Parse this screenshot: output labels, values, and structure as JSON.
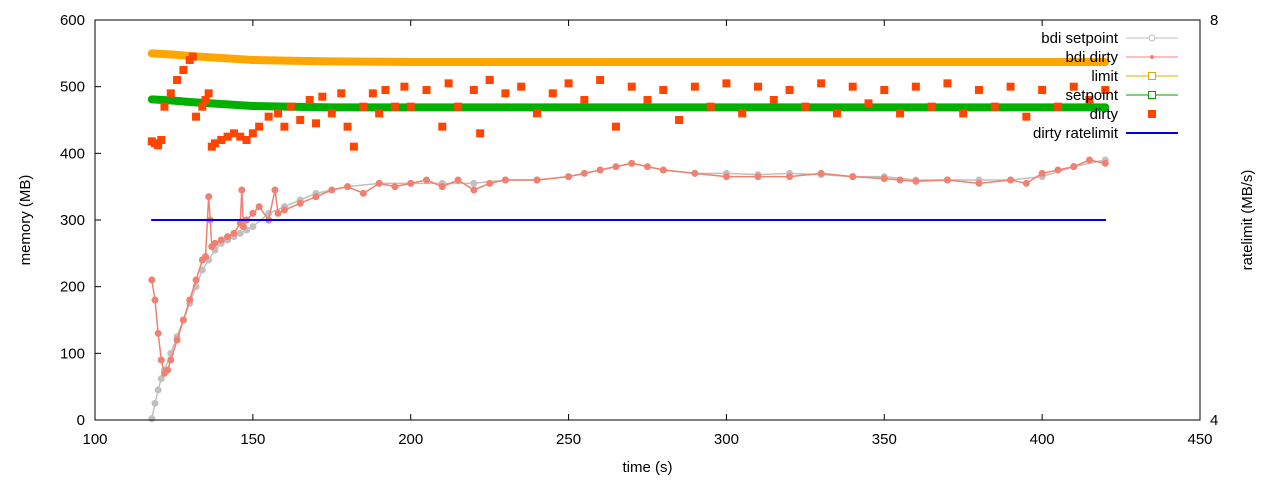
{
  "chart_data": {
    "type": "line",
    "xlabel": "time (s)",
    "ylabel": "memory (MB)",
    "y2label": "ratelimit (MB/s)",
    "xlim": [
      100,
      450
    ],
    "ylim": [
      0,
      600
    ],
    "y2lim": [
      4,
      8
    ],
    "xticks": [
      "100",
      "150",
      "200",
      "250",
      "300",
      "350",
      "400",
      "450"
    ],
    "yticks": [
      "0",
      "100",
      "200",
      "300",
      "400",
      "500",
      "600"
    ],
    "y2ticks": [
      "4",
      "8"
    ],
    "grid": false,
    "legend_position": "top-right",
    "series": [
      {
        "name": "bdi setpoint",
        "color": "#c0c0c0",
        "style": "linespoints",
        "x": [
          118,
          119,
          120,
          121,
          122,
          124,
          126,
          128,
          130,
          132,
          134,
          136,
          138,
          140,
          142,
          144,
          146,
          148,
          150,
          155,
          160,
          165,
          170,
          180,
          190,
          200,
          210,
          220,
          230,
          240,
          250,
          260,
          270,
          280,
          290,
          300,
          310,
          320,
          330,
          340,
          350,
          360,
          370,
          380,
          390,
          400,
          410,
          420
        ],
        "values": [
          2,
          25,
          45,
          62,
          75,
          100,
          125,
          150,
          175,
          200,
          225,
          240,
          255,
          265,
          270,
          275,
          280,
          285,
          290,
          310,
          320,
          330,
          340,
          350,
          355,
          355,
          355,
          355,
          360,
          360,
          365,
          375,
          385,
          375,
          370,
          370,
          368,
          370,
          368,
          365,
          365,
          360,
          360,
          360,
          360,
          365,
          380,
          390
        ]
      },
      {
        "name": "bdi dirty",
        "color": "#f08070",
        "style": "linespoints",
        "x": [
          118,
          119,
          120,
          121,
          122,
          123,
          124,
          126,
          128,
          130,
          132,
          134,
          135,
          136,
          136.5,
          137,
          138,
          140,
          142,
          144,
          146,
          146.5,
          147,
          148,
          150,
          152,
          155,
          157,
          158,
          160,
          165,
          170,
          175,
          180,
          185,
          190,
          195,
          200,
          205,
          210,
          215,
          220,
          225,
          230,
          240,
          250,
          255,
          260,
          265,
          270,
          275,
          280,
          290,
          300,
          310,
          320,
          330,
          340,
          350,
          355,
          360,
          370,
          380,
          390,
          395,
          400,
          405,
          410,
          415,
          420
        ],
        "values": [
          210,
          180,
          130,
          90,
          70,
          75,
          90,
          120,
          150,
          180,
          210,
          240,
          245,
          335,
          300,
          260,
          265,
          270,
          275,
          280,
          295,
          345,
          290,
          300,
          310,
          320,
          300,
          345,
          310,
          315,
          325,
          335,
          345,
          350,
          340,
          355,
          350,
          355,
          360,
          350,
          360,
          345,
          355,
          360,
          360,
          365,
          370,
          375,
          380,
          385,
          380,
          375,
          370,
          365,
          365,
          365,
          370,
          365,
          362,
          360,
          358,
          360,
          355,
          360,
          355,
          370,
          375,
          380,
          390,
          385
        ]
      },
      {
        "name": "limit",
        "color": "#ffa500",
        "style": "linespoints",
        "x": [
          118,
          125,
          130,
          140,
          150,
          160,
          175,
          200,
          250,
          300,
          350,
          400,
          420
        ],
        "values": [
          550,
          548,
          546,
          543,
          540,
          539,
          538,
          537,
          537,
          537,
          537,
          537,
          537
        ]
      },
      {
        "name": "setpoint",
        "color": "#00b000",
        "style": "linespoints",
        "x": [
          118,
          125,
          130,
          140,
          150,
          160,
          175,
          200,
          250,
          300,
          350,
          400,
          420
        ],
        "values": [
          481,
          479,
          477,
          474,
          471,
          470,
          469,
          469,
          469,
          469,
          469,
          469,
          469
        ]
      },
      {
        "name": "dirty",
        "color": "#ff4500",
        "style": "points",
        "x": [
          118,
          119,
          120,
          121,
          122,
          124,
          126,
          128,
          130,
          131,
          132,
          134,
          135,
          136,
          137,
          138,
          140,
          142,
          144,
          146,
          148,
          150,
          152,
          155,
          158,
          160,
          162,
          165,
          168,
          170,
          172,
          175,
          178,
          180,
          182,
          185,
          188,
          190,
          192,
          195,
          198,
          200,
          205,
          210,
          212,
          215,
          220,
          222,
          225,
          230,
          235,
          240,
          245,
          250,
          255,
          260,
          265,
          270,
          275,
          280,
          285,
          290,
          295,
          300,
          305,
          310,
          315,
          320,
          325,
          330,
          335,
          340,
          345,
          350,
          355,
          360,
          365,
          370,
          375,
          380,
          385,
          390,
          395,
          400,
          405,
          410,
          415,
          420
        ],
        "values": [
          418,
          415,
          412,
          420,
          470,
          490,
          510,
          525,
          540,
          545,
          455,
          470,
          480,
          490,
          410,
          415,
          420,
          425,
          430,
          425,
          420,
          430,
          440,
          455,
          460,
          440,
          470,
          450,
          480,
          445,
          485,
          460,
          490,
          440,
          410,
          470,
          490,
          460,
          495,
          470,
          500,
          470,
          495,
          440,
          505,
          470,
          495,
          430,
          510,
          490,
          500,
          460,
          490,
          505,
          480,
          510,
          440,
          500,
          480,
          495,
          450,
          500,
          470,
          505,
          460,
          500,
          480,
          495,
          470,
          505,
          460,
          500,
          475,
          495,
          460,
          500,
          470,
          505,
          460,
          495,
          470,
          500,
          455,
          495,
          470,
          500,
          480,
          495
        ]
      },
      {
        "name": "dirty ratelimit",
        "color": "#0000e0",
        "style": "lines",
        "axis": "y2",
        "x": [
          118,
          420
        ],
        "values": [
          6.0,
          6.0
        ]
      }
    ],
    "legend": [
      {
        "label": "bdi setpoint",
        "color": "#c0c0c0",
        "marker": "circle"
      },
      {
        "label": "bdi dirty",
        "color": "#f08070",
        "marker": "dot"
      },
      {
        "label": "limit",
        "color": "#e0a800",
        "marker": "square-open"
      },
      {
        "label": "setpoint",
        "color": "#00a000",
        "marker": "square-open"
      },
      {
        "label": "dirty",
        "color": "#ff4500",
        "marker": "square-filled"
      },
      {
        "label": "dirty ratelimit",
        "color": "#0000e0",
        "marker": "line"
      }
    ]
  }
}
